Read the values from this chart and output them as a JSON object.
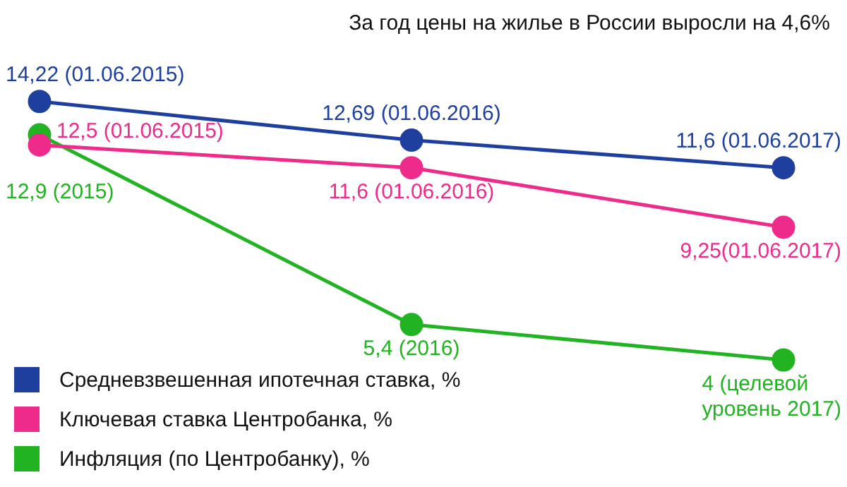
{
  "chart_data": {
    "type": "line",
    "title": "За год цены на жилье в России выросли на 4,6%",
    "categories": [
      null,
      null,
      null
    ],
    "series": [
      {
        "name": "Средневзвешенная ипотечная ставка, %",
        "color": "#1f3f9e",
        "values": [
          14.22,
          12.69,
          11.6
        ],
        "value_labels": [
          "14,22 (01.06.2015)",
          "12,69 (01.06.2016)",
          "11,6 (01.06.2017)"
        ]
      },
      {
        "name": "Ключевая ставка Центробанка, %",
        "color": "#ee2a8a",
        "values": [
          12.5,
          11.6,
          9.25
        ],
        "value_labels": [
          "12,5 (01.06.2015)",
          "11,6 (01.06.2016)",
          "9,25(01.06.2017)"
        ]
      },
      {
        "name": "Инфляция (по Центробанку), %",
        "color": "#22b322",
        "values": [
          12.9,
          5.4,
          4
        ],
        "value_labels": [
          "12,9 (2015)",
          "5,4 (2016)",
          "4 (целевой\nуровень 2017)"
        ]
      }
    ],
    "legend": "bottom left",
    "marker": "circle",
    "line_style": "solid"
  }
}
